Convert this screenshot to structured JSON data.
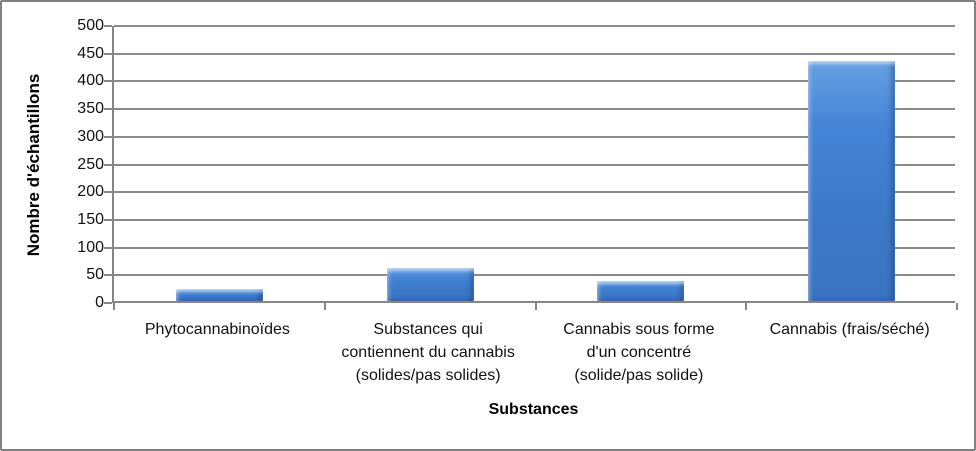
{
  "chart_data": {
    "type": "bar",
    "title": "",
    "categories": [
      "Phytocannabinoïdes",
      "Substances qui contiennent du cannabis (solides/pas solides)",
      "Cannabis sous forme d'un concentré (solide/pas solide)",
      "Cannabis (frais/séché)"
    ],
    "category_label_lines": [
      [
        "Phytocannabinoïdes"
      ],
      [
        "Substances qui",
        "contiennent du cannabis",
        "(solides/pas solides)"
      ],
      [
        "Cannabis sous forme",
        "d'un concentré",
        "(solide/pas solide)"
      ],
      [
        "Cannabis (frais/séché)"
      ]
    ],
    "values": [
      22,
      60,
      36,
      433
    ],
    "xlabel": "Substances",
    "ylabel": "Nombre d'échantillons",
    "ylim": [
      0,
      500
    ],
    "yticks": [
      0,
      50,
      100,
      150,
      200,
      250,
      300,
      350,
      400,
      450,
      500
    ],
    "grid": "horizontal gridlines on",
    "legend": "none",
    "colors": {
      "bar_fill": "#3d7ac9",
      "bar_highlight": "#66a0e2",
      "bar_shadow": "#2d5fa6",
      "gridline": "#8a8a8a",
      "axis": "#868686",
      "frame_border": "#7f7f7f",
      "text": "#000000",
      "background": "#ffffff"
    }
  }
}
